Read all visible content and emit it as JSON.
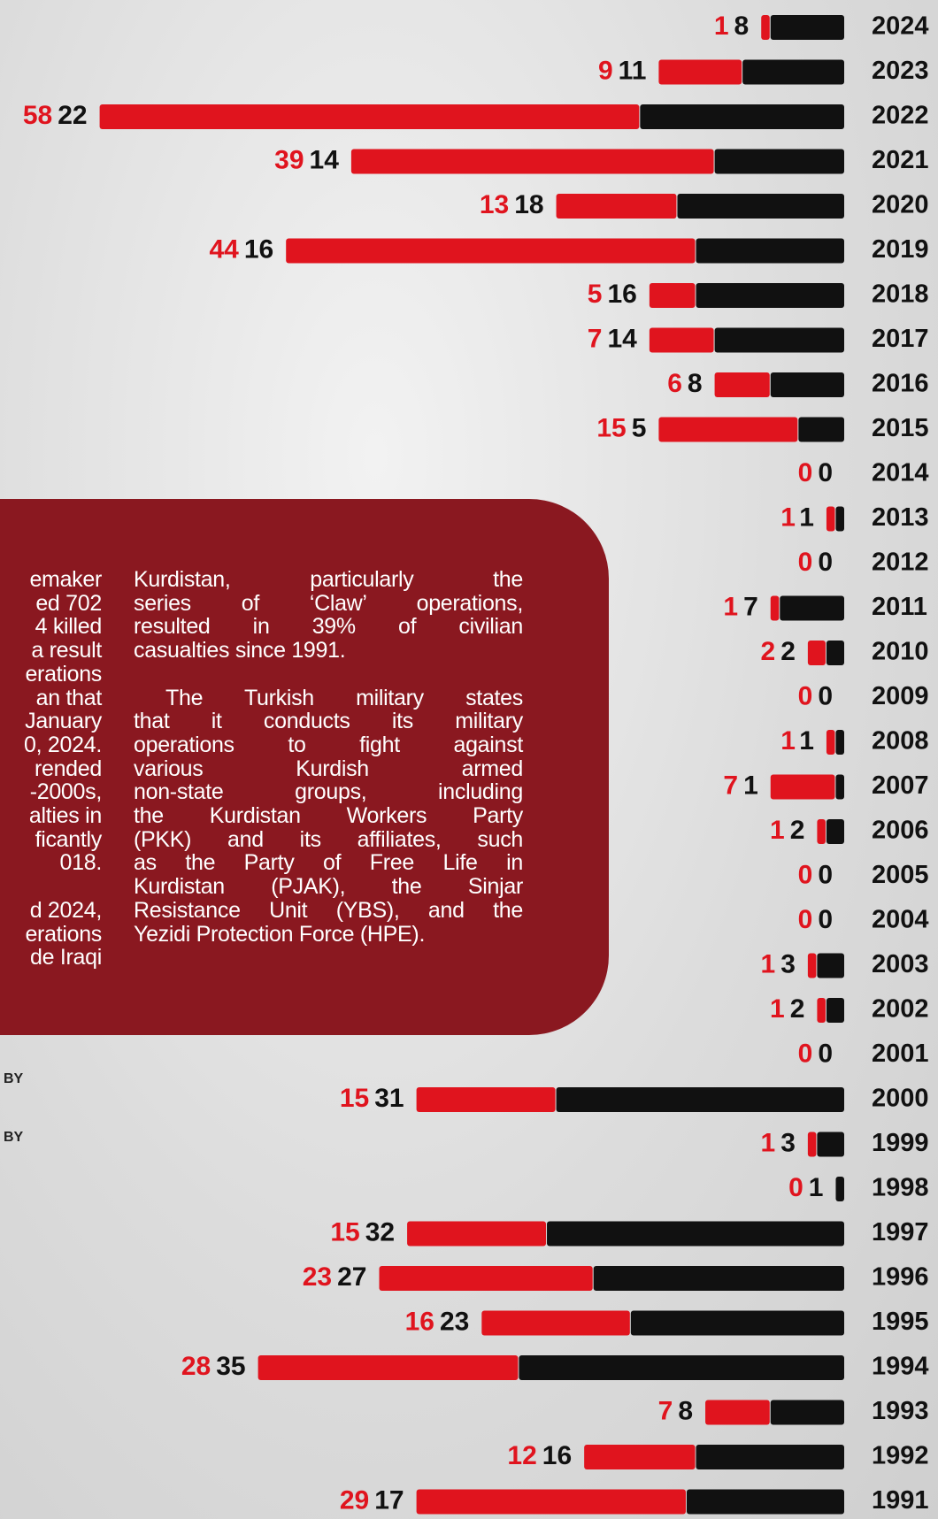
{
  "chart_data": {
    "type": "bar",
    "orientation": "horizontal",
    "stacked": true,
    "categories": [
      "2024",
      "2023",
      "2022",
      "2021",
      "2020",
      "2019",
      "2018",
      "2017",
      "2016",
      "2015",
      "2014",
      "2013",
      "2012",
      "2011",
      "2010",
      "2009",
      "2008",
      "2007",
      "2006",
      "2005",
      "2004",
      "2003",
      "2002",
      "2001",
      "2000",
      "1999",
      "1998",
      "1997",
      "1996",
      "1995",
      "1994",
      "1993",
      "1992",
      "1991"
    ],
    "series": [
      {
        "color": "#e0141e",
        "values": [
          1,
          9,
          58,
          39,
          13,
          44,
          5,
          7,
          6,
          15,
          0,
          1,
          0,
          1,
          2,
          0,
          1,
          7,
          1,
          0,
          0,
          1,
          1,
          0,
          15,
          1,
          0,
          15,
          23,
          16,
          28,
          7,
          12,
          29
        ]
      },
      {
        "color": "#111111",
        "values": [
          8,
          11,
          22,
          14,
          18,
          16,
          16,
          14,
          8,
          5,
          0,
          1,
          0,
          7,
          2,
          0,
          1,
          1,
          2,
          0,
          0,
          3,
          2,
          0,
          31,
          3,
          1,
          32,
          27,
          23,
          35,
          8,
          16,
          17
        ]
      }
    ]
  },
  "text_panel": {
    "left_paragraphs": [
      [
        "emaker",
        "ed 702",
        "4 killed",
        "a result",
        "erations",
        "an that",
        "January",
        "0, 2024.",
        "rended",
        "-2000s,",
        "alties in",
        "ficantly",
        "018."
      ],
      [
        "d 2024,",
        "erations",
        "de Iraqi"
      ]
    ],
    "right_paragraphs": [
      [
        "Kurdistan, particularly the",
        "series of ‘Claw’ operations,",
        "resulted in 39% of civilian",
        "casualties since 1991."
      ],
      [
        "The Turkish military states",
        "that it conducts its military",
        "operations to fight against",
        "various Kurdish armed",
        "non-state groups, including",
        "the Kurdistan Workers Party",
        "(PKK) and its affiliates, such",
        "as the Party of Free Life in",
        "Kurdistan (PJAK), the Sinjar",
        "Resistance Unit (YBS), and the",
        "Yezidi Protection Force (HPE)."
      ]
    ]
  },
  "notes": [
    "BY",
    "BY"
  ]
}
